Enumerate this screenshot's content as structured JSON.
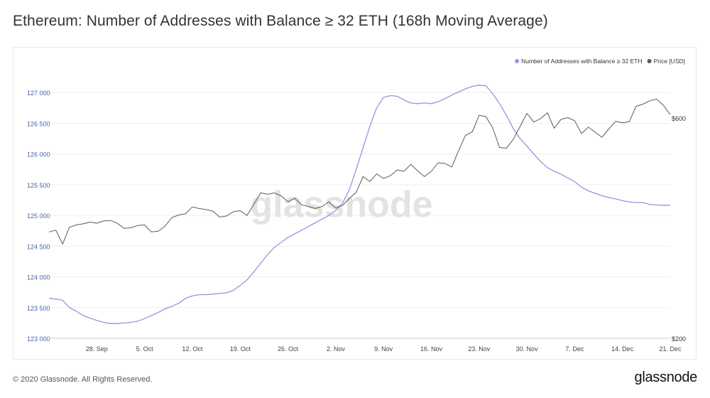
{
  "page": {
    "title": "Ethereum: Number of Addresses with Balance ≥ 32 ETH (168h Moving Average)",
    "footer_copyright": "© 2020 Glassnode. All Rights Reserved.",
    "footer_logo": "glassnode",
    "watermark": "glassnode"
  },
  "colors": {
    "addresses_series": "#8e98e0",
    "price_series": "#5a5a5a",
    "left_axis_text": "#4a5fa8",
    "grid": "#eeeeee"
  },
  "chart_data": {
    "type": "line",
    "title": "Ethereum: Number of Addresses with Balance ≥ 32 ETH (168h Moving Average)",
    "legend_position": "top-right",
    "grid": true,
    "x_range": [
      "2020-09-21",
      "2020-12-21"
    ],
    "x_ticks": [
      {
        "date": "2020-09-28",
        "label": "28. Sep"
      },
      {
        "date": "2020-10-05",
        "label": "5. Oct"
      },
      {
        "date": "2020-10-12",
        "label": "12. Oct"
      },
      {
        "date": "2020-10-19",
        "label": "19. Oct"
      },
      {
        "date": "2020-10-26",
        "label": "26. Oct"
      },
      {
        "date": "2020-11-02",
        "label": "2. Nov"
      },
      {
        "date": "2020-11-09",
        "label": "9. Nov"
      },
      {
        "date": "2020-11-16",
        "label": "16. Nov"
      },
      {
        "date": "2020-11-23",
        "label": "23. Nov"
      },
      {
        "date": "2020-11-30",
        "label": "30. Nov"
      },
      {
        "date": "2020-12-07",
        "label": "7. Dec"
      },
      {
        "date": "2020-12-14",
        "label": "14. Dec"
      },
      {
        "date": "2020-12-21",
        "label": "21. Dec"
      }
    ],
    "y_left": {
      "range": [
        123000,
        127500
      ],
      "ticks": [
        123000,
        123500,
        124000,
        124500,
        125000,
        125500,
        126000,
        126500,
        127000
      ],
      "tick_labels": [
        "123 000",
        "123 500",
        "124 000",
        "124 500",
        "125 000",
        "125 500",
        "126 000",
        "126 500",
        "127 000"
      ]
    },
    "y_right": {
      "scale": "log",
      "ticks": [
        200,
        600
      ],
      "tick_labels": [
        "$200",
        "$600"
      ]
    },
    "series": [
      {
        "name": "Number of Addresses with Balance ≥ 32 ETH",
        "axis": "left",
        "color": "#8e98e0",
        "points": [
          [
            "2020-09-21",
            123650
          ],
          [
            "2020-09-22",
            123640
          ],
          [
            "2020-09-23",
            123620
          ],
          [
            "2020-09-24",
            123500
          ],
          [
            "2020-09-25",
            123440
          ],
          [
            "2020-09-26",
            123370
          ],
          [
            "2020-09-27",
            123330
          ],
          [
            "2020-09-28",
            123290
          ],
          [
            "2020-09-29",
            123260
          ],
          [
            "2020-09-30",
            123240
          ],
          [
            "2020-10-01",
            123240
          ],
          [
            "2020-10-02",
            123250
          ],
          [
            "2020-10-03",
            123260
          ],
          [
            "2020-10-04",
            123280
          ],
          [
            "2020-10-05",
            123320
          ],
          [
            "2020-10-06",
            123370
          ],
          [
            "2020-10-07",
            123420
          ],
          [
            "2020-10-08",
            123480
          ],
          [
            "2020-10-09",
            123520
          ],
          [
            "2020-10-10",
            123570
          ],
          [
            "2020-10-11",
            123650
          ],
          [
            "2020-10-12",
            123690
          ],
          [
            "2020-10-13",
            123710
          ],
          [
            "2020-10-14",
            123710
          ],
          [
            "2020-10-15",
            123720
          ],
          [
            "2020-10-16",
            123730
          ],
          [
            "2020-10-17",
            123740
          ],
          [
            "2020-10-18",
            123780
          ],
          [
            "2020-10-19",
            123860
          ],
          [
            "2020-10-20",
            123950
          ],
          [
            "2020-10-21",
            124080
          ],
          [
            "2020-10-22",
            124220
          ],
          [
            "2020-10-23",
            124360
          ],
          [
            "2020-10-24",
            124480
          ],
          [
            "2020-10-25",
            124560
          ],
          [
            "2020-10-26",
            124640
          ],
          [
            "2020-10-27",
            124700
          ],
          [
            "2020-10-28",
            124760
          ],
          [
            "2020-10-29",
            124820
          ],
          [
            "2020-10-30",
            124880
          ],
          [
            "2020-10-31",
            124940
          ],
          [
            "2020-11-01",
            125000
          ],
          [
            "2020-11-02",
            125080
          ],
          [
            "2020-11-03",
            125200
          ],
          [
            "2020-11-04",
            125420
          ],
          [
            "2020-11-05",
            125750
          ],
          [
            "2020-11-06",
            126100
          ],
          [
            "2020-11-07",
            126450
          ],
          [
            "2020-11-08",
            126750
          ],
          [
            "2020-11-09",
            126920
          ],
          [
            "2020-11-10",
            126950
          ],
          [
            "2020-11-11",
            126940
          ],
          [
            "2020-11-12",
            126880
          ],
          [
            "2020-11-13",
            126830
          ],
          [
            "2020-11-14",
            126820
          ],
          [
            "2020-11-15",
            126830
          ],
          [
            "2020-11-16",
            126820
          ],
          [
            "2020-11-17",
            126850
          ],
          [
            "2020-11-18",
            126900
          ],
          [
            "2020-11-19",
            126960
          ],
          [
            "2020-11-20",
            127010
          ],
          [
            "2020-11-21",
            127060
          ],
          [
            "2020-11-22",
            127100
          ],
          [
            "2020-11-23",
            127120
          ],
          [
            "2020-11-24",
            127110
          ],
          [
            "2020-11-25",
            126980
          ],
          [
            "2020-11-26",
            126820
          ],
          [
            "2020-11-27",
            126630
          ],
          [
            "2020-11-28",
            126420
          ],
          [
            "2020-11-29",
            126250
          ],
          [
            "2020-11-30",
            126130
          ],
          [
            "2020-12-01",
            126000
          ],
          [
            "2020-12-02",
            125880
          ],
          [
            "2020-12-03",
            125780
          ],
          [
            "2020-12-04",
            125720
          ],
          [
            "2020-12-05",
            125670
          ],
          [
            "2020-12-06",
            125610
          ],
          [
            "2020-12-07",
            125550
          ],
          [
            "2020-12-08",
            125460
          ],
          [
            "2020-12-09",
            125400
          ],
          [
            "2020-12-10",
            125360
          ],
          [
            "2020-12-11",
            125320
          ],
          [
            "2020-12-12",
            125290
          ],
          [
            "2020-12-13",
            125270
          ],
          [
            "2020-12-14",
            125240
          ],
          [
            "2020-12-15",
            125220
          ],
          [
            "2020-12-16",
            125210
          ],
          [
            "2020-12-17",
            125210
          ],
          [
            "2020-12-18",
            125180
          ],
          [
            "2020-12-19",
            125170
          ],
          [
            "2020-12-20",
            125165
          ],
          [
            "2020-12-21",
            125165
          ]
        ]
      },
      {
        "name": "Price [USD]",
        "axis": "right",
        "color": "#5a5a5a",
        "points": [
          [
            "2020-09-21",
            340
          ],
          [
            "2020-09-22",
            343
          ],
          [
            "2020-09-23",
            320
          ],
          [
            "2020-09-24",
            348
          ],
          [
            "2020-09-25",
            352
          ],
          [
            "2020-09-26",
            354
          ],
          [
            "2020-09-27",
            357
          ],
          [
            "2020-09-28",
            355
          ],
          [
            "2020-09-29",
            359
          ],
          [
            "2020-09-30",
            360
          ],
          [
            "2020-10-01",
            355
          ],
          [
            "2020-10-02",
            346
          ],
          [
            "2020-10-03",
            347
          ],
          [
            "2020-10-04",
            351
          ],
          [
            "2020-10-05",
            352
          ],
          [
            "2020-10-06",
            340
          ],
          [
            "2020-10-07",
            341
          ],
          [
            "2020-10-08",
            350
          ],
          [
            "2020-10-09",
            365
          ],
          [
            "2020-10-10",
            370
          ],
          [
            "2020-10-11",
            372
          ],
          [
            "2020-10-12",
            385
          ],
          [
            "2020-10-13",
            382
          ],
          [
            "2020-10-14",
            380
          ],
          [
            "2020-10-15",
            377
          ],
          [
            "2020-10-16",
            366
          ],
          [
            "2020-10-17",
            368
          ],
          [
            "2020-10-18",
            376
          ],
          [
            "2020-10-19",
            378
          ],
          [
            "2020-10-20",
            369
          ],
          [
            "2020-10-21",
            390
          ],
          [
            "2020-10-22",
            413
          ],
          [
            "2020-10-23",
            410
          ],
          [
            "2020-10-24",
            413
          ],
          [
            "2020-10-25",
            407
          ],
          [
            "2020-10-26",
            395
          ],
          [
            "2020-10-27",
            402
          ],
          [
            "2020-10-28",
            389
          ],
          [
            "2020-10-29",
            386
          ],
          [
            "2020-10-30",
            382
          ],
          [
            "2020-10-31",
            386
          ],
          [
            "2020-11-01",
            395
          ],
          [
            "2020-11-02",
            383
          ],
          [
            "2020-11-03",
            388
          ],
          [
            "2020-11-04",
            402
          ],
          [
            "2020-11-05",
            414
          ],
          [
            "2020-11-06",
            448
          ],
          [
            "2020-11-07",
            437
          ],
          [
            "2020-11-08",
            454
          ],
          [
            "2020-11-09",
            444
          ],
          [
            "2020-11-10",
            450
          ],
          [
            "2020-11-11",
            463
          ],
          [
            "2020-11-12",
            460
          ],
          [
            "2020-11-13",
            476
          ],
          [
            "2020-11-14",
            461
          ],
          [
            "2020-11-15",
            448
          ],
          [
            "2020-11-16",
            460
          ],
          [
            "2020-11-17",
            480
          ],
          [
            "2020-11-18",
            478
          ],
          [
            "2020-11-19",
            470
          ],
          [
            "2020-11-20",
            510
          ],
          [
            "2020-11-21",
            550
          ],
          [
            "2020-11-22",
            560
          ],
          [
            "2020-11-23",
            608
          ],
          [
            "2020-11-24",
            604
          ],
          [
            "2020-11-25",
            571
          ],
          [
            "2020-11-26",
            518
          ],
          [
            "2020-11-27",
            516
          ],
          [
            "2020-11-28",
            539
          ],
          [
            "2020-11-29",
            575
          ],
          [
            "2020-11-30",
            614
          ],
          [
            "2020-12-01",
            588
          ],
          [
            "2020-12-02",
            598
          ],
          [
            "2020-12-03",
            616
          ],
          [
            "2020-12-04",
            570
          ],
          [
            "2020-12-05",
            596
          ],
          [
            "2020-12-06",
            601
          ],
          [
            "2020-12-07",
            592
          ],
          [
            "2020-12-08",
            555
          ],
          [
            "2020-12-09",
            573
          ],
          [
            "2020-12-10",
            559
          ],
          [
            "2020-12-11",
            545
          ],
          [
            "2020-12-12",
            568
          ],
          [
            "2020-12-13",
            590
          ],
          [
            "2020-12-14",
            586
          ],
          [
            "2020-12-15",
            589
          ],
          [
            "2020-12-16",
            636
          ],
          [
            "2020-12-17",
            643
          ],
          [
            "2020-12-18",
            654
          ],
          [
            "2020-12-19",
            659
          ],
          [
            "2020-12-20",
            639
          ],
          [
            "2020-12-21",
            610
          ]
        ]
      }
    ]
  }
}
